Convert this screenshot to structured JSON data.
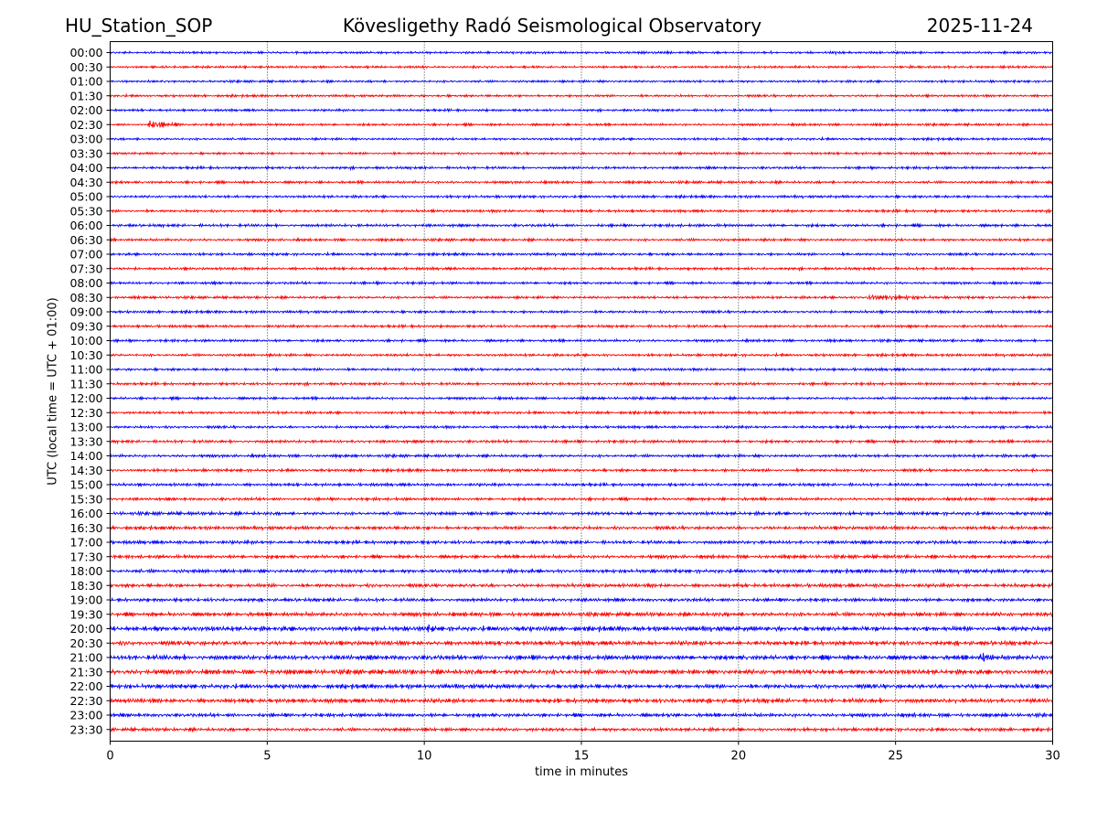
{
  "header": {
    "station": "HU_Station_SOP",
    "title": "Kövesligethy Radó Seismological Observatory",
    "date": "2025-11-24"
  },
  "chart_data": {
    "type": "line",
    "title": "Kövesligethy Radó Seismological Observatory",
    "xlabel": "time in minutes",
    "ylabel": "UTC (local time = UTC + 01:00)",
    "xlim": [
      0,
      30
    ],
    "x_ticks": [
      "0",
      "5",
      "10",
      "15",
      "20",
      "25",
      "30"
    ],
    "x_tick_values": [
      0,
      5,
      10,
      15,
      20,
      25,
      30
    ],
    "grid": "vertical dotted at x ticks",
    "colors": {
      "even_rows": "#0000ff",
      "odd_rows": "#ff0000"
    },
    "row_labels": [
      "00:00",
      "00:30",
      "01:00",
      "01:30",
      "02:00",
      "02:30",
      "03:00",
      "03:30",
      "04:00",
      "04:30",
      "05:00",
      "05:30",
      "06:00",
      "06:30",
      "07:00",
      "07:30",
      "08:00",
      "08:30",
      "09:00",
      "09:30",
      "10:00",
      "10:30",
      "11:00",
      "11:30",
      "12:00",
      "12:30",
      "13:00",
      "13:30",
      "14:00",
      "14:30",
      "15:00",
      "15:30",
      "16:00",
      "16:30",
      "17:00",
      "17:30",
      "18:00",
      "18:30",
      "19:00",
      "19:30",
      "20:00",
      "20:30",
      "21:00",
      "21:30",
      "22:00",
      "22:30",
      "23:00",
      "23:30"
    ],
    "noise_level": [
      0.9,
      0.9,
      0.9,
      0.9,
      0.9,
      0.9,
      0.9,
      0.9,
      1.0,
      1.0,
      1.0,
      1.0,
      1.1,
      1.0,
      1.0,
      1.0,
      1.0,
      1.0,
      1.0,
      1.0,
      1.0,
      1.0,
      1.0,
      1.0,
      1.0,
      1.0,
      1.0,
      1.1,
      1.1,
      1.1,
      1.1,
      1.1,
      1.3,
      1.3,
      1.3,
      1.3,
      1.4,
      1.4,
      1.3,
      1.6,
      1.9,
      1.7,
      1.9,
      1.9,
      1.7,
      1.7,
      1.4,
      1.3
    ],
    "events": [
      {
        "row": "02:30",
        "start_min": 1.1,
        "duration_min": 1.5,
        "amplitude": 4.0
      },
      {
        "row": "08:30",
        "start_min": 24.0,
        "duration_min": 3.5,
        "amplitude": 3.0
      },
      {
        "row": "20:00",
        "start_min": 1.2,
        "duration_min": 0.5,
        "amplitude": 2.2
      },
      {
        "row": "20:00",
        "start_min": 10.0,
        "duration_min": 0.6,
        "amplitude": 2.0
      },
      {
        "row": "21:00",
        "start_min": 27.6,
        "duration_min": 0.8,
        "amplitude": 2.5
      },
      {
        "row": "23:00",
        "start_min": 17.6,
        "duration_min": 0.4,
        "amplitude": 2.0
      }
    ]
  }
}
